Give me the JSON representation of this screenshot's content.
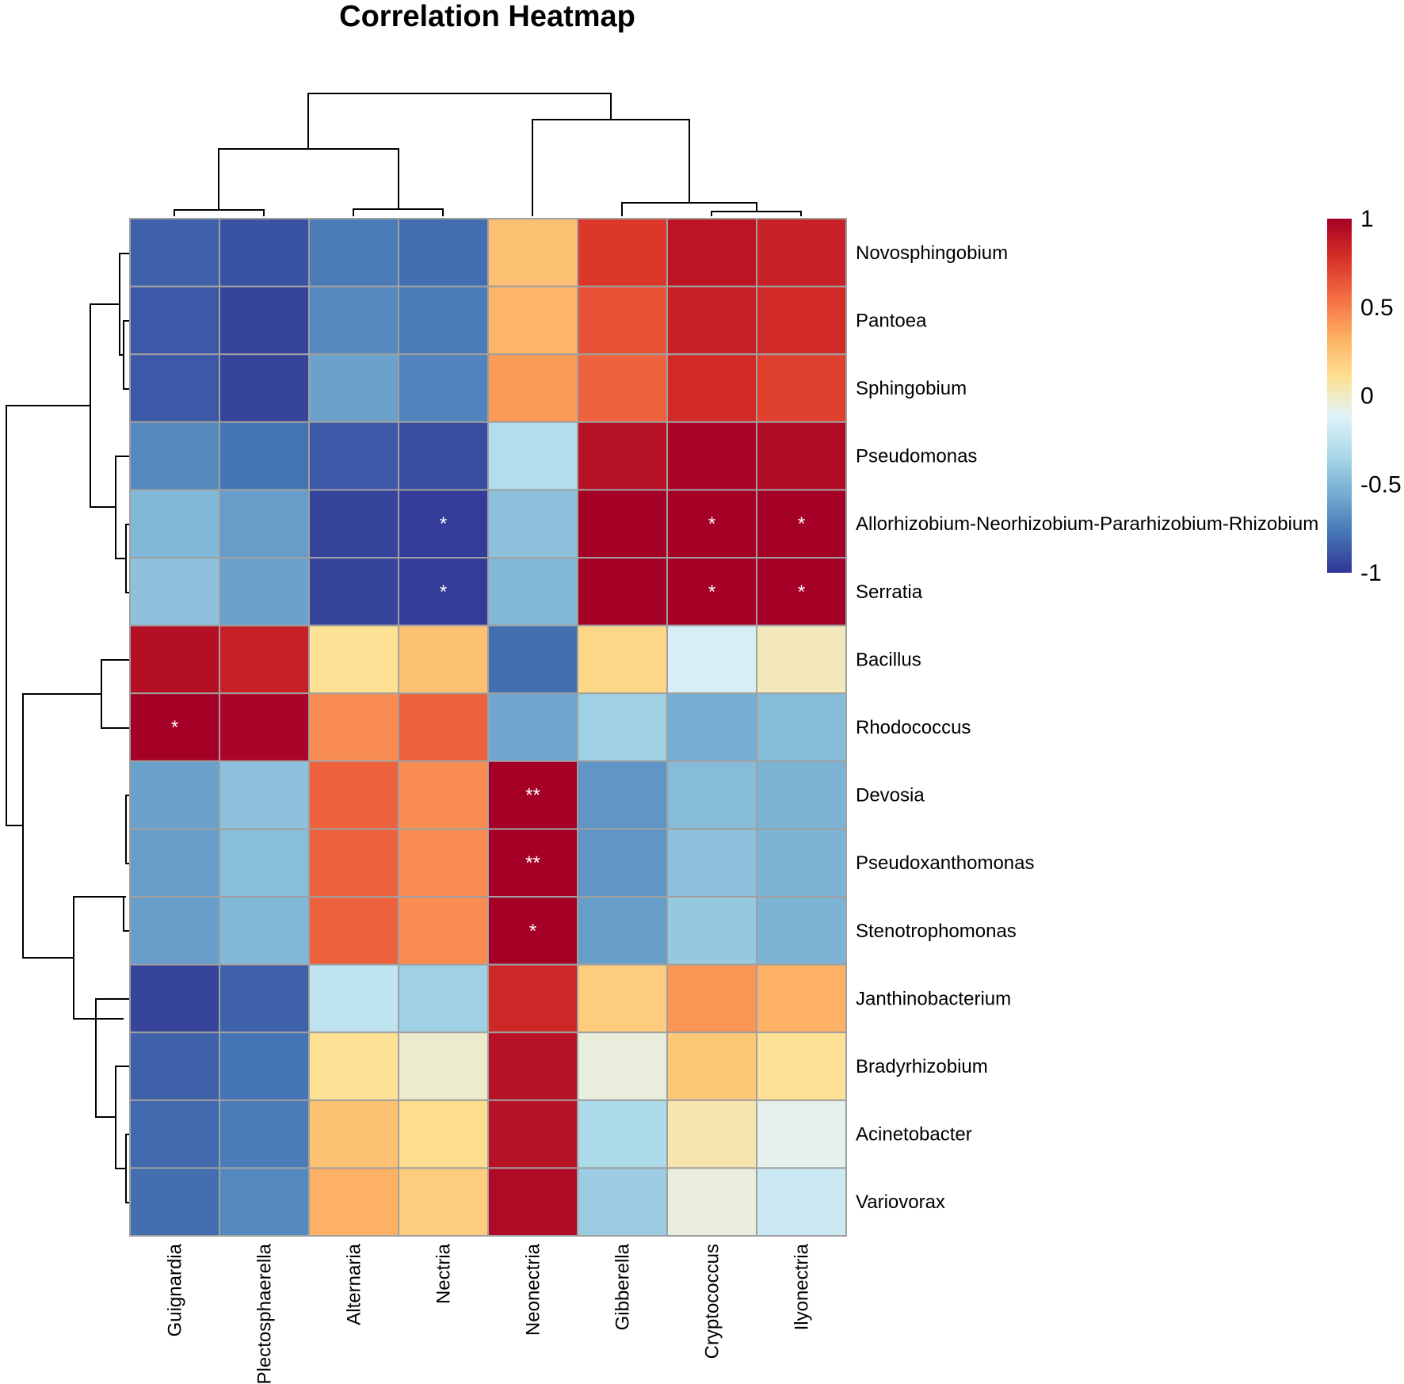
{
  "chart_data": {
    "type": "heatmap",
    "title": "Correlation Heatmap",
    "columns": [
      "Guignardia",
      "Plectosphaerella",
      "Alternaria",
      "Nectria",
      "Neonectria",
      "Gibberella",
      "Cryptococcus",
      "Ilyonectria"
    ],
    "rows": [
      "Novosphingobium",
      "Pantoea",
      "Sphingobium",
      "Pseudomonas",
      "Allorhizobium-Neorhizobium-Pararhizobium-Rhizobium",
      "Serratia",
      "Bacillus",
      "Rhodococcus",
      "Devosia",
      "Pseudoxanthomonas",
      "Stenotrophomonas",
      "Janthinobacterium",
      "Bradyrhizobium",
      "Acinetobacter",
      "Variovorax"
    ],
    "values": [
      [
        -0.85,
        -0.9,
        -0.75,
        -0.8,
        0.25,
        0.75,
        0.9,
        0.85
      ],
      [
        -0.88,
        -0.95,
        -0.7,
        -0.75,
        0.3,
        0.65,
        0.85,
        0.8
      ],
      [
        -0.88,
        -0.95,
        -0.6,
        -0.72,
        0.4,
        0.6,
        0.8,
        0.72
      ],
      [
        -0.7,
        -0.78,
        -0.88,
        -0.92,
        -0.3,
        0.92,
        0.98,
        0.95
      ],
      [
        -0.5,
        -0.62,
        -0.95,
        -0.98,
        -0.45,
        1.0,
        1.0,
        1.0
      ],
      [
        -0.45,
        -0.6,
        -0.95,
        -0.98,
        -0.5,
        1.0,
        1.0,
        1.0
      ],
      [
        0.93,
        0.85,
        0.1,
        0.25,
        -0.8,
        0.15,
        -0.15,
        0.02
      ],
      [
        1.0,
        0.98,
        0.45,
        0.6,
        -0.58,
        -0.38,
        -0.55,
        -0.48
      ],
      [
        -0.6,
        -0.45,
        0.6,
        0.45,
        1.0,
        -0.65,
        -0.48,
        -0.52
      ],
      [
        -0.62,
        -0.47,
        0.6,
        0.45,
        1.0,
        -0.65,
        -0.45,
        -0.52
      ],
      [
        -0.62,
        -0.5,
        0.6,
        0.45,
        1.0,
        -0.62,
        -0.42,
        -0.52
      ],
      [
        -0.95,
        -0.85,
        -0.25,
        -0.38,
        0.82,
        0.2,
        0.42,
        0.32
      ],
      [
        -0.85,
        -0.78,
        0.1,
        -0.02,
        0.92,
        -0.05,
        0.22,
        0.1
      ],
      [
        -0.82,
        -0.75,
        0.25,
        0.12,
        0.92,
        -0.32,
        0.05,
        -0.08
      ],
      [
        -0.8,
        -0.7,
        0.32,
        0.2,
        0.95,
        -0.4,
        -0.05,
        -0.2
      ]
    ],
    "significance": [
      [
        "",
        "",
        "",
        "",
        "",
        "",
        "",
        ""
      ],
      [
        "",
        "",
        "",
        "",
        "",
        "",
        "",
        ""
      ],
      [
        "",
        "",
        "",
        "",
        "",
        "",
        "",
        ""
      ],
      [
        "",
        "",
        "",
        "",
        "",
        "",
        "",
        ""
      ],
      [
        "",
        "",
        "",
        "*",
        "",
        "",
        "*",
        "*"
      ],
      [
        "",
        "",
        "",
        "*",
        "",
        "",
        "*",
        "*"
      ],
      [
        "",
        "",
        "",
        "",
        "",
        "",
        "",
        ""
      ],
      [
        "*",
        "",
        "",
        "",
        "",
        "",
        "",
        ""
      ],
      [
        "",
        "",
        "",
        "",
        "**",
        "",
        "",
        ""
      ],
      [
        "",
        "",
        "",
        "",
        "**",
        "",
        "",
        ""
      ],
      [
        "",
        "",
        "",
        "",
        "*",
        "",
        "",
        ""
      ],
      [
        "",
        "",
        "",
        "",
        "",
        "",
        "",
        ""
      ],
      [
        "",
        "",
        "",
        "",
        "",
        "",
        "",
        ""
      ],
      [
        "",
        "",
        "",
        "",
        "",
        "",
        "",
        ""
      ],
      [
        "",
        "",
        "",
        "",
        "",
        "",
        "",
        ""
      ]
    ],
    "legend": {
      "ticks": [
        "1",
        "0.5",
        "0",
        "-0.5",
        "-1"
      ],
      "range": [
        -1,
        1
      ],
      "colors": [
        "#313695",
        "#4575b4",
        "#74add1",
        "#abd9e9",
        "#e0f3f8",
        "#fee090",
        "#fdae61",
        "#f46d43",
        "#d73027",
        "#a50026"
      ]
    },
    "cell_border_color": "#a0a0a0"
  }
}
